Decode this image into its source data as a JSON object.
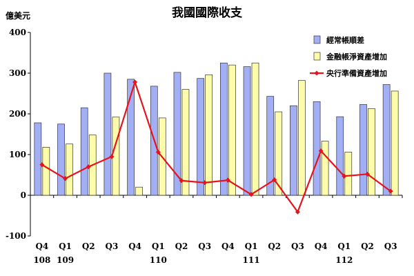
{
  "chart_data": {
    "type": "bar",
    "title": "我國國際收支",
    "ylabel": "億美元",
    "ylim": [
      -100,
      400
    ],
    "yticks": [
      -100,
      0,
      100,
      200,
      300,
      400
    ],
    "grid": false,
    "legend_position": "top-right",
    "categories": [
      "Q4",
      "Q1",
      "Q2",
      "Q3",
      "Q4",
      "Q1",
      "Q2",
      "Q3",
      "Q4",
      "Q1",
      "Q2",
      "Q3",
      "Q4",
      "Q1",
      "Q2",
      "Q3"
    ],
    "year_labels": [
      "108",
      "109",
      "",
      "",
      "",
      "110",
      "",
      "",
      "",
      "111",
      "",
      "",
      "",
      "112",
      "",
      ""
    ],
    "series": [
      {
        "name": "經常帳順差",
        "type": "bar",
        "color": "#a3aff5",
        "values": [
          178,
          175,
          215,
          300,
          285,
          268,
          302,
          287,
          325,
          316,
          243,
          220,
          230,
          193,
          223,
          272
        ]
      },
      {
        "name": "金融帳淨資產增加",
        "type": "bar",
        "color": "#fdfcaa",
        "values": [
          118,
          126,
          148,
          192,
          20,
          190,
          260,
          296,
          320,
          325,
          205,
          282,
          133,
          106,
          213,
          256
        ]
      },
      {
        "name": "央行準備資產增加",
        "type": "line",
        "color": "#e8121c",
        "values": [
          75,
          41,
          70,
          95,
          278,
          106,
          36,
          31,
          37,
          2,
          38,
          -41,
          109,
          47,
          52,
          10
        ]
      }
    ]
  }
}
